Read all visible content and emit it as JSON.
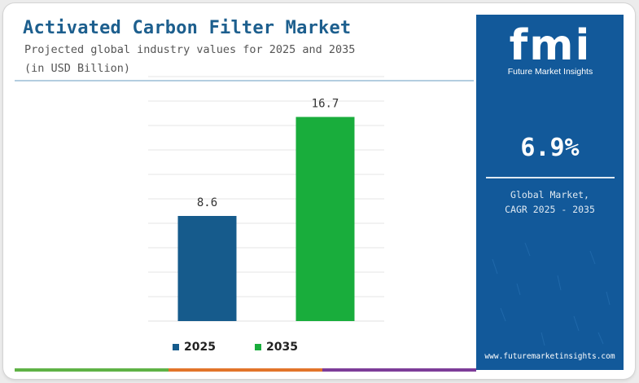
{
  "header": {
    "title": "Activated Carbon Filter Market",
    "subtitle_line1": "Projected global industry values for 2025 and 2035",
    "subtitle_line2": "(in USD Billion)"
  },
  "chart_data": {
    "type": "bar",
    "title": "Activated Carbon Filter Market",
    "subtitle": "Projected global industry values for 2025 and 2035",
    "ylabel": "(in USD Billion)",
    "categories": [
      "2025",
      "2035"
    ],
    "series": [
      {
        "name": "2025",
        "values": [
          8.6,
          null
        ],
        "color": "#165b8c"
      },
      {
        "name": "2035",
        "values": [
          null,
          16.7
        ],
        "color": "#19ad3c"
      }
    ],
    "value_labels": [
      "8.6",
      "16.7"
    ],
    "ylim": [
      0,
      20
    ],
    "grid": true,
    "legend": "bottom"
  },
  "sidebar": {
    "logo_mark": "fmi",
    "logo_name": "Future Market Insights",
    "cagr_value": "6.9%",
    "cagr_label_line1": "Global Market,",
    "cagr_label_line2": "CAGR 2025 - 2035",
    "website": "www.futuremarketinsights.com"
  },
  "colors": {
    "accent": "#1d5f8e",
    "sidebar_bg": "#12599a",
    "bar_2025": "#165b8c",
    "bar_2035": "#19ad3c",
    "stripe": [
      "#5fb246",
      "#e2742a",
      "#7d3c98"
    ]
  }
}
